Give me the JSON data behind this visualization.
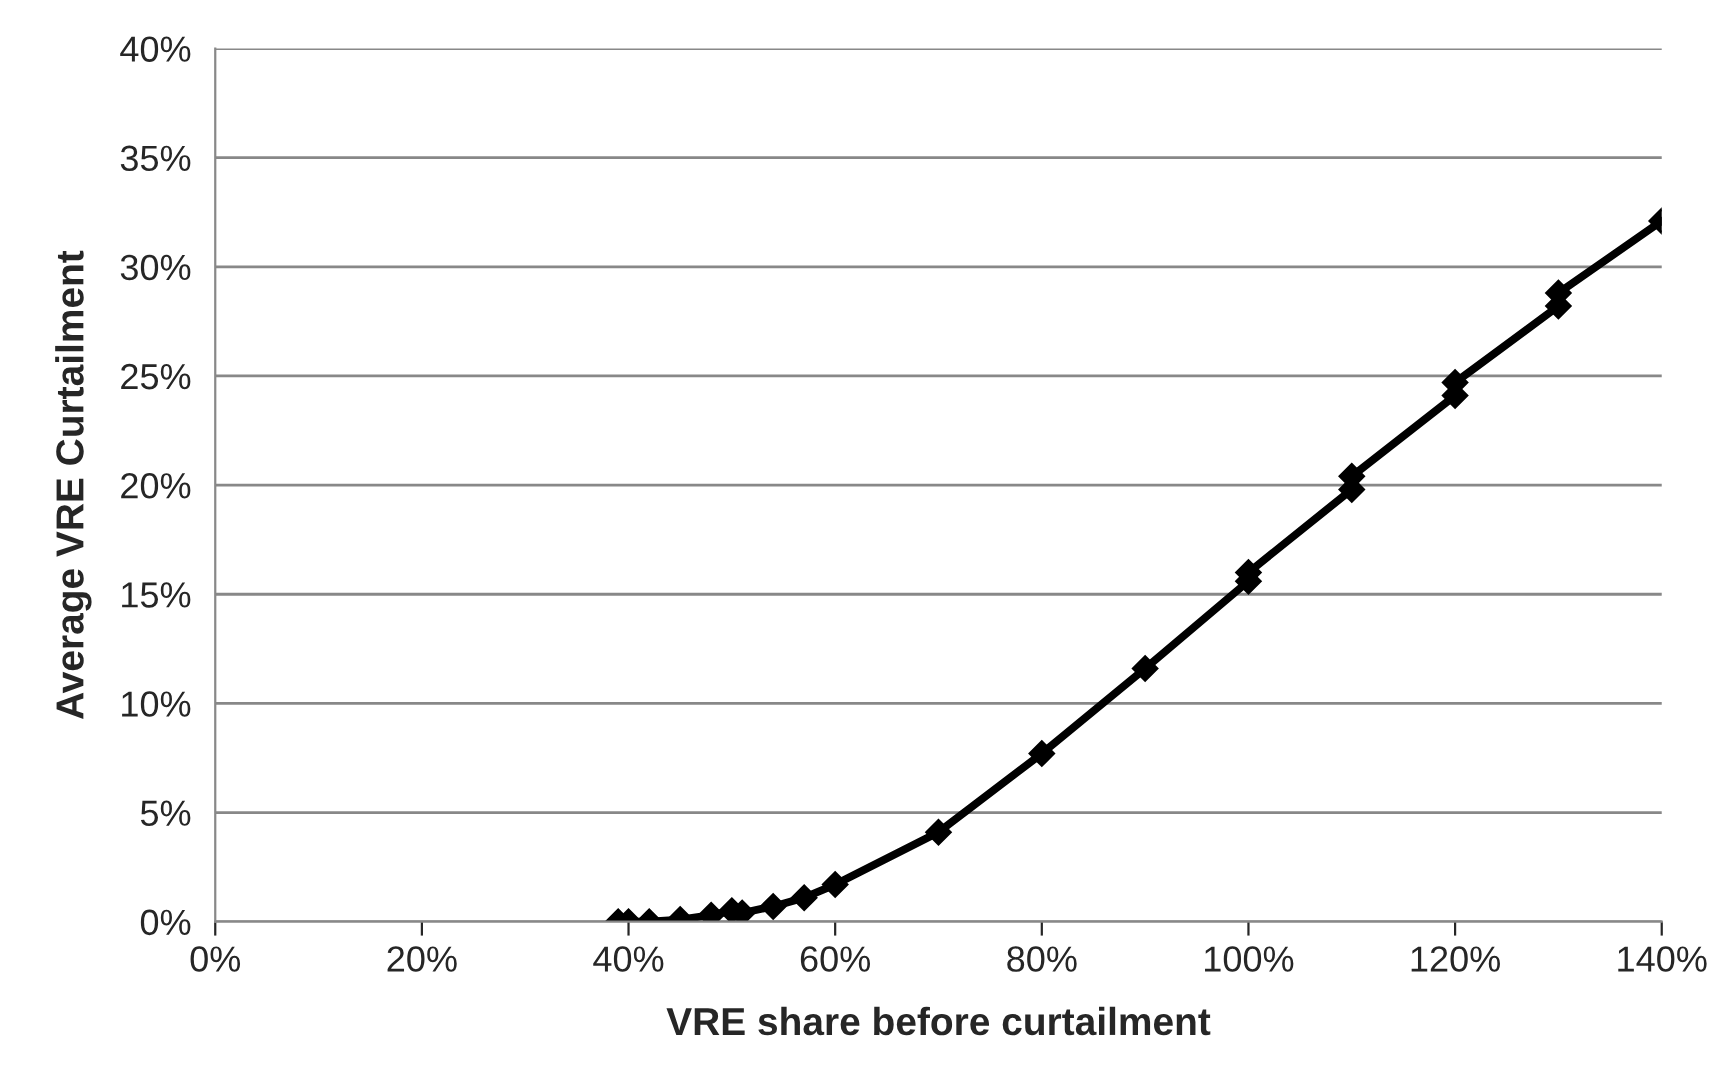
{
  "chart_data": {
    "type": "line",
    "xlabel": "VRE share before curtailment",
    "ylabel": "Average VRE Curtailment",
    "series": [
      {
        "color": "#000000",
        "x": [
          39,
          40,
          42,
          45,
          48,
          50,
          51,
          54,
          57,
          60,
          70,
          80,
          90,
          100,
          100,
          110,
          110,
          120,
          120,
          130,
          130,
          140
        ],
        "values": [
          0,
          0,
          0,
          0.1,
          0.3,
          0.5,
          0.4,
          0.7,
          1.1,
          1.7,
          4.1,
          7.7,
          11.6,
          15.6,
          16.0,
          19.8,
          20.4,
          24.1,
          24.7,
          28.2,
          28.8,
          32.1
        ]
      }
    ],
    "xlim": [
      0,
      140
    ],
    "xticks": [
      {
        "value": 0,
        "label": "0%"
      },
      {
        "value": 20,
        "label": "20%"
      },
      {
        "value": 40,
        "label": "40%"
      },
      {
        "value": 60,
        "label": "60%"
      },
      {
        "value": 80,
        "label": "80%"
      },
      {
        "value": 100,
        "label": "100%"
      },
      {
        "value": 120,
        "label": "120%"
      },
      {
        "value": 140,
        "label": "140%"
      }
    ],
    "ylim": [
      0,
      40
    ],
    "yticks": [
      {
        "value": 0,
        "label": "0%"
      },
      {
        "value": 5,
        "label": "5%"
      },
      {
        "value": 10,
        "label": "10%"
      },
      {
        "value": 15,
        "label": "15%"
      },
      {
        "value": 20,
        "label": "20%"
      },
      {
        "value": 25,
        "label": "25%"
      },
      {
        "value": 30,
        "label": "30%"
      },
      {
        "value": 35,
        "label": "35%"
      },
      {
        "value": 40,
        "label": "40%"
      }
    ],
    "grid": "y",
    "marker": "diamond",
    "line_style": "solid"
  }
}
